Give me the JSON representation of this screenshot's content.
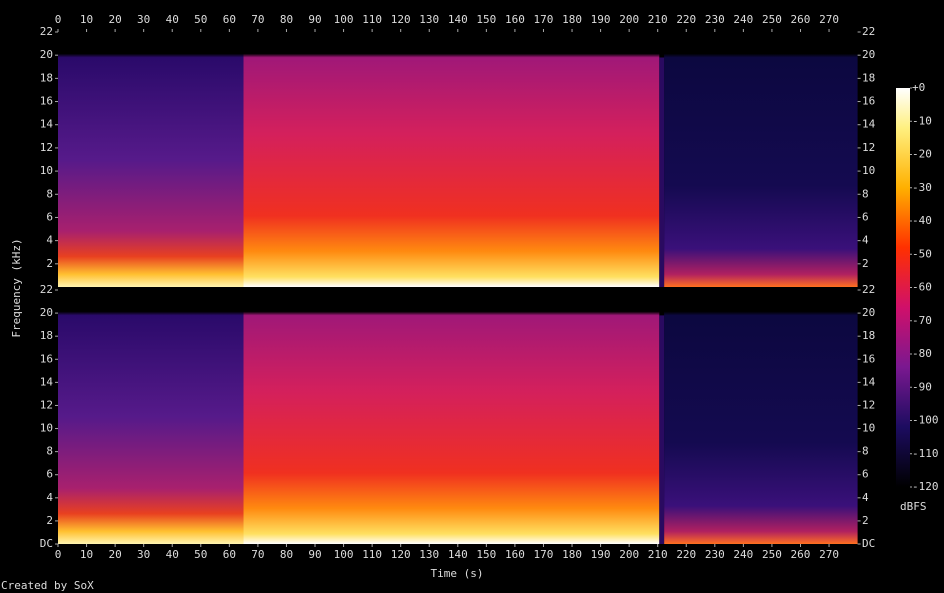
{
  "chart_data": [
    {
      "type": "spectrogram",
      "ylim": [
        0,
        22
      ],
      "yticks": [
        2,
        4,
        6,
        8,
        10,
        12,
        14,
        16,
        18,
        20,
        22
      ],
      "xlim": [
        0,
        280
      ],
      "xticks": [
        0,
        10,
        20,
        30,
        40,
        50,
        60,
        70,
        80,
        90,
        100,
        110,
        120,
        130,
        140,
        150,
        160,
        170,
        180,
        190,
        200,
        210,
        220,
        230,
        240,
        250,
        260,
        270
      ]
    },
    {
      "type": "spectrogram",
      "ylabel": "Frequency (kHz)",
      "xlabel": "Time (s)",
      "ylim": [
        0,
        22
      ],
      "yticks": [
        {
          "value": 0,
          "label": "DC"
        },
        2,
        4,
        6,
        8,
        10,
        12,
        14,
        16,
        18,
        20,
        22
      ],
      "xlim": [
        0,
        280
      ],
      "xticks": [
        0,
        10,
        20,
        30,
        40,
        50,
        60,
        70,
        80,
        90,
        100,
        110,
        120,
        130,
        140,
        150,
        160,
        170,
        180,
        190,
        200,
        210,
        220,
        230,
        240,
        250,
        260,
        270
      ]
    }
  ],
  "colorbar": {
    "label": "dBFS",
    "lim": [
      -120,
      0
    ],
    "ticks": [
      {
        "value": 0,
        "label": "+0"
      },
      -10,
      -20,
      -30,
      -40,
      -50,
      -60,
      -70,
      -80,
      -90,
      -100,
      -110,
      -120
    ]
  },
  "footer": "Created by SoX"
}
